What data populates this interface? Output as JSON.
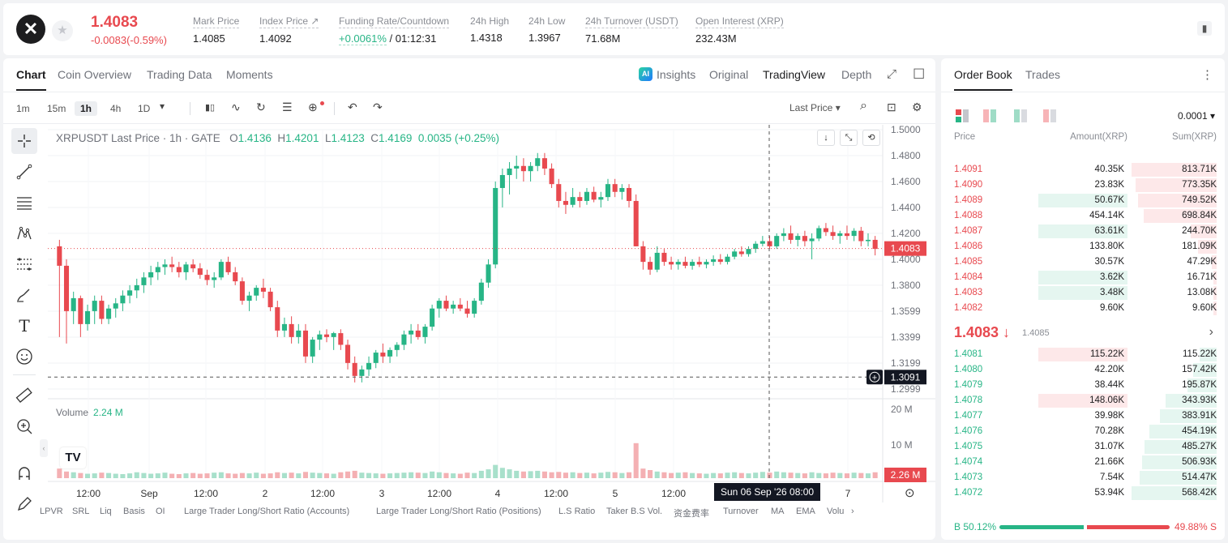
{
  "header": {
    "logo_glyph": "✕",
    "favorite_icon": "★",
    "last_price": "1.4083",
    "change": "-0.0083(-0.59%)",
    "stats": [
      {
        "label": "Mark Price",
        "value": "1.4085"
      },
      {
        "label": "Index Price ↗",
        "value": "1.4092"
      },
      {
        "label": "Funding Rate/Countdown",
        "value": "+0.0061%",
        "value2": " / 01:12:31"
      },
      {
        "label": "24h High",
        "value": "1.4318"
      },
      {
        "label": "24h Low",
        "value": "1.3967"
      },
      {
        "label": "24h Turnover (USDT)",
        "value": "71.68M"
      },
      {
        "label": "Open Interest (XRP)",
        "value": "232.43M"
      }
    ]
  },
  "chart_tabs": {
    "left": [
      "Chart",
      "Coin Overview",
      "Trading Data",
      "Moments"
    ],
    "ai_badge": "AI",
    "right": [
      "Insights",
      "Original",
      "TradingView",
      "Depth"
    ],
    "expand_icon": "⤢",
    "window_icon": "☐"
  },
  "toolbar": {
    "timeframes": [
      "1m",
      "15m",
      "1h",
      "4h",
      "1D"
    ],
    "dropdown_icon": "▾",
    "icons": [
      "▮▯",
      "∿",
      "↻",
      "☰",
      "⊕"
    ],
    "undo_icon": "↶",
    "redo_icon": "↷",
    "price_type": "Last Price ▾",
    "search_icon": "⌕",
    "camera_icon": "⊡",
    "gear_icon": "⚙"
  },
  "draw_tools": [
    "-|-",
    "╱",
    "☰",
    "⋀",
    "⋮",
    "✎",
    "T",
    "☺",
    "📏",
    "⊕",
    "⋂",
    "✐"
  ],
  "legend": {
    "symbol": "XRPUSDT Last Price · 1h · GATE",
    "o_label": "O",
    "o": "1.4136",
    "h_label": "H",
    "h": "1.4201",
    "l_label": "L",
    "l": "1.4123",
    "c_label": "C",
    "c": "1.4169",
    "diff": "0.0035 (+0.25%)"
  },
  "volume": {
    "label": "Volume",
    "value": "2.24 M",
    "axis": [
      "20 M",
      "10 M"
    ],
    "tag": "2.26 M"
  },
  "chart_buttons": [
    "↓",
    "⤡",
    "⟲"
  ],
  "crosshair": {
    "price": "1.3091",
    "date": "Sun 06 Sep '26   08:00",
    "plus": "+"
  },
  "tv_logo": "TV",
  "settings_icon": "⊙",
  "chart_data": {
    "type": "candlestick",
    "symbol": "XRPUSDT",
    "interval": "1h",
    "y_ticks": [
      "1.5000",
      "1.4800",
      "1.4600",
      "1.4400",
      "1.4200",
      "1.4000",
      "1.3800",
      "1.3599",
      "1.3399",
      "1.3199",
      "1.2999"
    ],
    "ylim": [
      1.2999,
      1.5
    ],
    "x_ticks": [
      "12:00",
      "Sep",
      "12:00",
      "2",
      "12:00",
      "3",
      "12:00",
      "4",
      "12:00",
      "5",
      "12:00",
      "7"
    ],
    "last_price": "1.4083",
    "ohlc": [
      [
        1.41,
        1.415,
        1.34,
        1.395
      ],
      [
        1.395,
        1.4,
        1.335,
        1.36
      ],
      [
        1.36,
        1.375,
        1.35,
        1.37
      ],
      [
        1.37,
        1.372,
        1.34,
        1.35
      ],
      [
        1.35,
        1.365,
        1.345,
        1.36
      ],
      [
        1.36,
        1.372,
        1.35,
        1.368
      ],
      [
        1.368,
        1.372,
        1.35,
        1.354
      ],
      [
        1.354,
        1.365,
        1.35,
        1.362
      ],
      [
        1.362,
        1.37,
        1.355,
        1.366
      ],
      [
        1.366,
        1.376,
        1.36,
        1.372
      ],
      [
        1.372,
        1.38,
        1.366,
        1.376
      ],
      [
        1.376,
        1.385,
        1.37,
        1.38
      ],
      [
        1.38,
        1.39,
        1.374,
        1.386
      ],
      [
        1.386,
        1.395,
        1.38,
        1.39
      ],
      [
        1.39,
        1.398,
        1.384,
        1.394
      ],
      [
        1.394,
        1.4,
        1.388,
        1.396
      ],
      [
        1.396,
        1.402,
        1.39,
        1.394
      ],
      [
        1.394,
        1.398,
        1.386,
        1.39
      ],
      [
        1.39,
        1.398,
        1.384,
        1.396
      ],
      [
        1.396,
        1.4,
        1.39,
        1.393
      ],
      [
        1.393,
        1.397,
        1.385,
        1.388
      ],
      [
        1.388,
        1.392,
        1.38,
        1.384
      ],
      [
        1.384,
        1.39,
        1.378,
        1.386
      ],
      [
        1.386,
        1.4,
        1.384,
        1.398
      ],
      [
        1.398,
        1.402,
        1.388,
        1.39
      ],
      [
        1.39,
        1.394,
        1.38,
        1.383
      ],
      [
        1.383,
        1.386,
        1.365,
        1.368
      ],
      [
        1.368,
        1.375,
        1.36,
        1.372
      ],
      [
        1.372,
        1.38,
        1.368,
        1.378
      ],
      [
        1.378,
        1.385,
        1.37,
        1.375
      ],
      [
        1.375,
        1.378,
        1.36,
        1.363
      ],
      [
        1.363,
        1.368,
        1.34,
        1.345
      ],
      [
        1.345,
        1.355,
        1.34,
        1.35
      ],
      [
        1.35,
        1.356,
        1.335,
        1.34
      ],
      [
        1.34,
        1.35,
        1.335,
        1.345
      ],
      [
        1.345,
        1.35,
        1.32,
        1.325
      ],
      [
        1.325,
        1.34,
        1.32,
        1.338
      ],
      [
        1.338,
        1.345,
        1.33,
        1.342
      ],
      [
        1.342,
        1.346,
        1.336,
        1.34
      ],
      [
        1.34,
        1.344,
        1.33,
        1.343
      ],
      [
        1.343,
        1.346,
        1.33,
        1.334
      ],
      [
        1.334,
        1.338,
        1.315,
        1.32
      ],
      [
        1.32,
        1.325,
        1.305,
        1.31
      ],
      [
        1.31,
        1.318,
        1.305,
        1.315
      ],
      [
        1.315,
        1.325,
        1.31,
        1.32
      ],
      [
        1.32,
        1.33,
        1.316,
        1.328
      ],
      [
        1.328,
        1.335,
        1.32,
        1.325
      ],
      [
        1.325,
        1.332,
        1.32,
        1.33
      ],
      [
        1.33,
        1.336,
        1.325,
        1.334
      ],
      [
        1.334,
        1.345,
        1.33,
        1.342
      ],
      [
        1.342,
        1.35,
        1.335,
        1.345
      ],
      [
        1.345,
        1.35,
        1.338,
        1.34
      ],
      [
        1.34,
        1.35,
        1.335,
        1.348
      ],
      [
        1.348,
        1.365,
        1.345,
        1.362
      ],
      [
        1.362,
        1.37,
        1.355,
        1.368
      ],
      [
        1.368,
        1.372,
        1.36,
        1.362
      ],
      [
        1.362,
        1.368,
        1.358,
        1.365
      ],
      [
        1.365,
        1.37,
        1.36,
        1.362
      ],
      [
        1.362,
        1.368,
        1.355,
        1.358
      ],
      [
        1.358,
        1.37,
        1.355,
        1.368
      ],
      [
        1.368,
        1.385,
        1.365,
        1.382
      ],
      [
        1.382,
        1.4,
        1.378,
        1.396
      ],
      [
        1.396,
        1.46,
        1.393,
        1.455
      ],
      [
        1.455,
        1.47,
        1.44,
        1.465
      ],
      [
        1.465,
        1.475,
        1.45,
        1.47
      ],
      [
        1.47,
        1.48,
        1.462,
        1.472
      ],
      [
        1.472,
        1.478,
        1.46,
        1.468
      ],
      [
        1.468,
        1.475,
        1.46,
        1.472
      ],
      [
        1.472,
        1.482,
        1.468,
        1.478
      ],
      [
        1.478,
        1.482,
        1.465,
        1.47
      ],
      [
        1.47,
        1.474,
        1.455,
        1.458
      ],
      [
        1.458,
        1.462,
        1.44,
        1.445
      ],
      [
        1.445,
        1.452,
        1.435,
        1.442
      ],
      [
        1.442,
        1.455,
        1.44,
        1.448
      ],
      [
        1.448,
        1.452,
        1.44,
        1.445
      ],
      [
        1.445,
        1.455,
        1.442,
        1.452
      ],
      [
        1.452,
        1.456,
        1.444,
        1.446
      ],
      [
        1.446,
        1.452,
        1.44,
        1.448
      ],
      [
        1.448,
        1.462,
        1.445,
        1.458
      ],
      [
        1.458,
        1.462,
        1.448,
        1.452
      ],
      [
        1.452,
        1.458,
        1.446,
        1.455
      ],
      [
        1.455,
        1.458,
        1.44,
        1.445
      ],
      [
        1.445,
        1.45,
        1.41,
        1.41
      ],
      [
        1.41,
        1.414,
        1.392,
        1.398
      ],
      [
        1.398,
        1.402,
        1.388,
        1.392
      ],
      [
        1.392,
        1.41,
        1.39,
        1.405
      ],
      [
        1.405,
        1.408,
        1.395,
        1.398
      ],
      [
        1.398,
        1.402,
        1.392,
        1.396
      ],
      [
        1.396,
        1.4,
        1.392,
        1.398
      ],
      [
        1.398,
        1.402,
        1.393,
        1.395
      ],
      [
        1.395,
        1.4,
        1.392,
        1.398
      ],
      [
        1.398,
        1.402,
        1.394,
        1.396
      ],
      [
        1.396,
        1.4,
        1.393,
        1.398
      ],
      [
        1.398,
        1.403,
        1.395,
        1.4
      ],
      [
        1.4,
        1.404,
        1.396,
        1.398
      ],
      [
        1.398,
        1.404,
        1.396,
        1.402
      ],
      [
        1.402,
        1.408,
        1.4,
        1.406
      ],
      [
        1.406,
        1.41,
        1.402,
        1.404
      ],
      [
        1.404,
        1.41,
        1.402,
        1.408
      ],
      [
        1.408,
        1.414,
        1.405,
        1.412
      ],
      [
        1.412,
        1.418,
        1.41,
        1.414
      ],
      [
        1.414,
        1.418,
        1.408,
        1.41
      ],
      [
        1.41,
        1.42,
        1.408,
        1.418
      ],
      [
        1.418,
        1.424,
        1.414,
        1.42
      ],
      [
        1.42,
        1.426,
        1.412,
        1.415
      ],
      [
        1.415,
        1.42,
        1.41,
        1.418
      ],
      [
        1.418,
        1.422,
        1.41,
        1.414
      ],
      [
        1.414,
        1.42,
        1.4,
        1.416
      ],
      [
        1.416,
        1.426,
        1.414,
        1.424
      ],
      [
        1.424,
        1.428,
        1.418,
        1.421
      ],
      [
        1.421,
        1.426,
        1.415,
        1.418
      ],
      [
        1.418,
        1.422,
        1.412,
        1.42
      ],
      [
        1.42,
        1.426,
        1.415,
        1.418
      ],
      [
        1.418,
        1.424,
        1.414,
        1.422
      ],
      [
        1.422,
        1.425,
        1.41,
        1.414
      ],
      [
        1.414,
        1.42,
        1.41,
        1.415
      ],
      [
        1.415,
        1.418,
        1.403,
        1.408
      ]
    ],
    "volume": [
      2.6,
      1.8,
      1.6,
      1.4,
      1.2,
      1.3,
      1.5,
      1.4,
      1.2,
      1.1,
      1.3,
      1.6,
      1.4,
      1.2,
      1.3,
      1.5,
      1.2,
      1.1,
      1.3,
      1.4,
      1.2,
      1.3,
      1.5,
      1.6,
      1.3,
      1.2,
      1.4,
      1.3,
      1.5,
      1.2,
      1.3,
      1.6,
      1.4,
      1.5,
      1.3,
      1.7,
      1.5,
      1.4,
      1.3,
      1.2,
      1.6,
      1.8,
      2.0,
      1.5,
      1.4,
      1.3,
      1.2,
      1.3,
      1.4,
      1.5,
      1.6,
      1.5,
      1.4,
      1.8,
      1.6,
      1.4,
      1.3,
      1.2,
      1.5,
      1.4,
      2.0,
      2.4,
      3.6,
      2.8,
      2.4,
      2.0,
      1.8,
      1.9,
      2.0,
      1.8,
      1.6,
      1.7,
      1.5,
      1.6,
      1.4,
      1.5,
      1.3,
      1.5,
      1.7,
      1.6,
      1.4,
      1.6,
      9.5,
      2.6,
      2.2,
      1.8,
      1.6,
      1.4,
      1.5,
      1.6,
      1.4,
      1.3,
      1.2,
      1.4,
      1.3,
      1.5,
      1.6,
      1.4,
      1.3,
      1.5,
      1.7,
      1.5,
      1.8,
      1.6,
      1.5,
      1.4,
      1.3,
      1.6,
      1.4,
      1.3,
      1.5,
      1.4,
      1.3,
      1.5,
      1.4,
      1.3,
      1.6
    ]
  },
  "indicators": [
    "LPVR",
    "SRL",
    "Liq",
    "Basis",
    "OI",
    "Large Trader Long/Short Ratio (Accounts)",
    "Large Trader Long/Short Ratio (Positions)",
    "L.S Ratio",
    "Taker B.S Vol.",
    "资金费率",
    "Turnover",
    "MA",
    "EMA",
    "Volu",
    "›"
  ],
  "orderbook": {
    "tabs": [
      "Order Book",
      "Trades"
    ],
    "more_icon": "⋮",
    "precision": "0.0001 ▾",
    "headers": [
      "Price",
      "Amount(XRP)",
      "Sum(XRP)"
    ],
    "asks": [
      {
        "price": "1.4091",
        "amount": "40.35K",
        "sum": "813.71K",
        "hl": false,
        "depth": 1.0
      },
      {
        "price": "1.4090",
        "amount": "23.83K",
        "sum": "773.35K",
        "hl": false,
        "depth": 0.95
      },
      {
        "price": "1.4089",
        "amount": "50.67K",
        "sum": "749.52K",
        "hl": true,
        "depth": 0.92
      },
      {
        "price": "1.4088",
        "amount": "454.14K",
        "sum": "698.84K",
        "hl": false,
        "depth": 0.86
      },
      {
        "price": "1.4087",
        "amount": "63.61K",
        "sum": "244.70K",
        "hl": true,
        "depth": 0.3
      },
      {
        "price": "1.4086",
        "amount": "133.80K",
        "sum": "181.09K",
        "hl": false,
        "depth": 0.22
      },
      {
        "price": "1.4085",
        "amount": "30.57K",
        "sum": "47.29K",
        "hl": false,
        "depth": 0.06
      },
      {
        "price": "1.4084",
        "amount": "3.62K",
        "sum": "16.71K",
        "hl": true,
        "depth": 0.02
      },
      {
        "price": "1.4083",
        "amount": "3.48K",
        "sum": "13.08K",
        "hl": true,
        "depth": 0.016
      },
      {
        "price": "1.4082",
        "amount": "9.60K",
        "sum": "9.60K",
        "hl": false,
        "depth": 0.012
      }
    ],
    "mid_price": "1.4083 ↓",
    "mid_mark": "1.4085",
    "mid_arrow": "›",
    "bids": [
      {
        "price": "1.4081",
        "amount": "115.22K",
        "sum": "115.22K",
        "hl": true,
        "depth": 0.2
      },
      {
        "price": "1.4080",
        "amount": "42.20K",
        "sum": "157.42K",
        "hl": false,
        "depth": 0.28
      },
      {
        "price": "1.4079",
        "amount": "38.44K",
        "sum": "195.87K",
        "hl": false,
        "depth": 0.34
      },
      {
        "price": "1.4078",
        "amount": "148.06K",
        "sum": "343.93K",
        "hl": true,
        "depth": 0.6
      },
      {
        "price": "1.4077",
        "amount": "39.98K",
        "sum": "383.91K",
        "hl": false,
        "depth": 0.67
      },
      {
        "price": "1.4076",
        "amount": "70.28K",
        "sum": "454.19K",
        "hl": false,
        "depth": 0.79
      },
      {
        "price": "1.4075",
        "amount": "31.07K",
        "sum": "485.27K",
        "hl": false,
        "depth": 0.85
      },
      {
        "price": "1.4074",
        "amount": "21.66K",
        "sum": "506.93K",
        "hl": false,
        "depth": 0.88
      },
      {
        "price": "1.4073",
        "amount": "7.54K",
        "sum": "514.47K",
        "hl": false,
        "depth": 0.9
      },
      {
        "price": "1.4072",
        "amount": "53.94K",
        "sum": "568.42K",
        "hl": false,
        "depth": 1.0
      }
    ],
    "buy_ratio": "B 50.12%",
    "sell_ratio": "49.88% S"
  },
  "colors": {
    "up": "#27b586",
    "down": "#e8494f",
    "up_bg": "#e5f6f0",
    "down_bg": "#fde8e9"
  }
}
